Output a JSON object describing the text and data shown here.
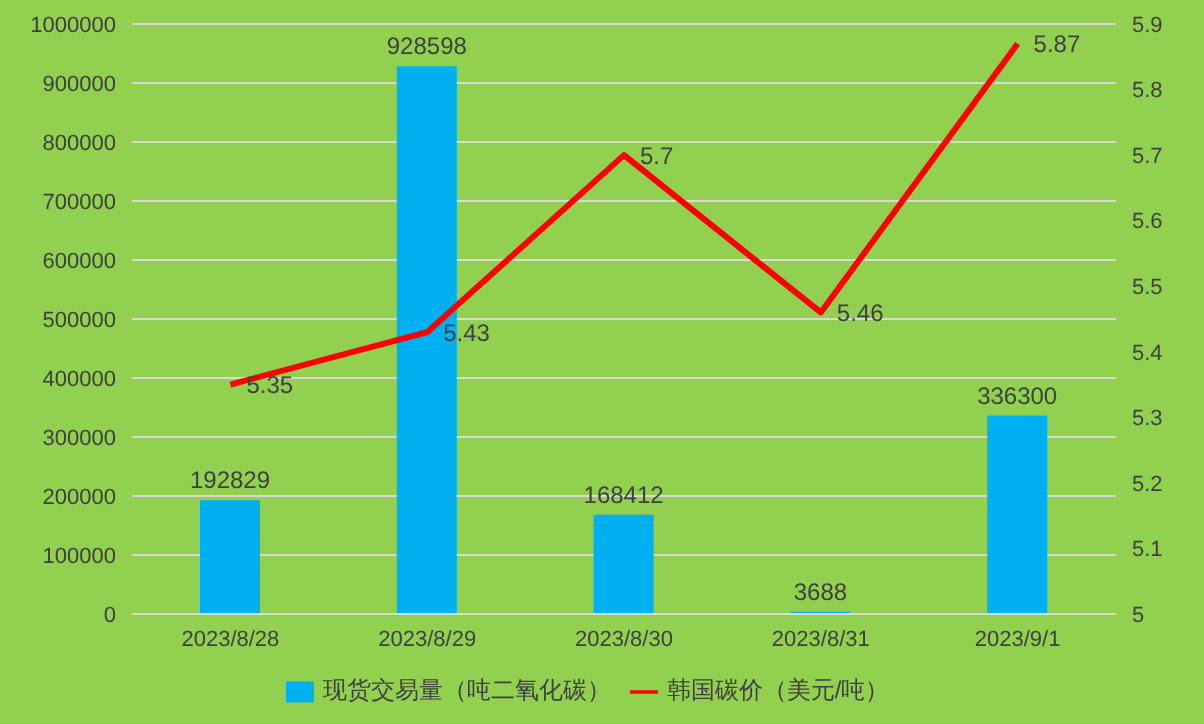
{
  "chart_data": {
    "type": "bar",
    "categories": [
      "2023/8/28",
      "2023/8/29",
      "2023/8/30",
      "2023/8/31",
      "2023/9/1"
    ],
    "series": [
      {
        "name": "现货交易量（吨二氧化碳）",
        "color": "#00b0f0",
        "values": [
          192829,
          928598,
          168412,
          3688,
          336300
        ]
      },
      {
        "name": "韩国碳价（美元/吨）",
        "type": "line",
        "axis": "y2",
        "color": "#ff0000",
        "values": [
          5.35,
          5.43,
          5.7,
          5.46,
          5.87
        ]
      }
    ],
    "ylim": [
      0,
      1000000
    ],
    "yticks": [
      0,
      100000,
      200000,
      300000,
      400000,
      500000,
      600000,
      700000,
      800000,
      900000,
      1000000
    ],
    "y2lim": [
      5,
      5.9
    ],
    "y2ticks": [
      5,
      5.1,
      5.2,
      5.3,
      5.4,
      5.5,
      5.6,
      5.7,
      5.8,
      5.9
    ],
    "grid": "y",
    "legend": "bottom",
    "data_labels": true,
    "marker": "none"
  }
}
